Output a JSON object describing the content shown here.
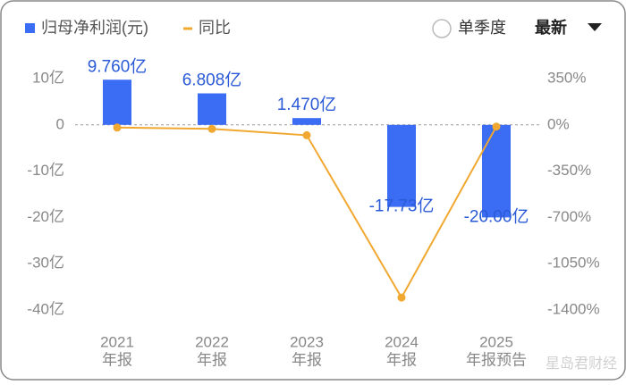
{
  "chart_data": {
    "type": "combo",
    "controls": {
      "radio_label": "单季度",
      "dropdown_label": "最新"
    },
    "categories": [
      "2021",
      "2022",
      "2023",
      "2024",
      "2025"
    ],
    "category_sublabels": [
      "年报",
      "年报",
      "年报",
      "年报",
      "年报预告"
    ],
    "series": [
      {
        "name": "归母净利润(元)",
        "type": "bar",
        "color": "#3a6cf4",
        "values": [
          9.76,
          6.808,
          1.47,
          -17.73,
          -20.0
        ],
        "value_labels": [
          "9.760亿",
          "6.808亿",
          "1.470亿",
          "-17.73亿",
          "-20.00亿"
        ]
      },
      {
        "name": "同比",
        "type": "line",
        "axis": "y2",
        "color": "#f0a830",
        "values": [
          -20,
          -30.2,
          -78.4,
          -1306.1,
          -12.8
        ]
      }
    ],
    "ylim": [
      -40,
      10
    ],
    "yticks": [
      {
        "value": 10,
        "label": "10亿"
      },
      0,
      {
        "value": -10,
        "label": "-10亿"
      },
      {
        "value": -20,
        "label": "-20亿"
      },
      {
        "value": -30,
        "label": "-30亿"
      },
      {
        "value": -40,
        "label": "-40亿"
      }
    ],
    "y2lim": [
      -1400,
      350
    ],
    "y2ticks": [
      {
        "value": 350,
        "label": "350%"
      },
      {
        "value": 0,
        "label": "0%"
      },
      {
        "value": -350,
        "label": "-350%"
      },
      {
        "value": -700,
        "label": "-700%"
      },
      {
        "value": -1050,
        "label": "-1050%"
      },
      {
        "value": -1400,
        "label": "-1400%"
      }
    ],
    "zero_line": true,
    "watermark": "星岛君财经"
  }
}
